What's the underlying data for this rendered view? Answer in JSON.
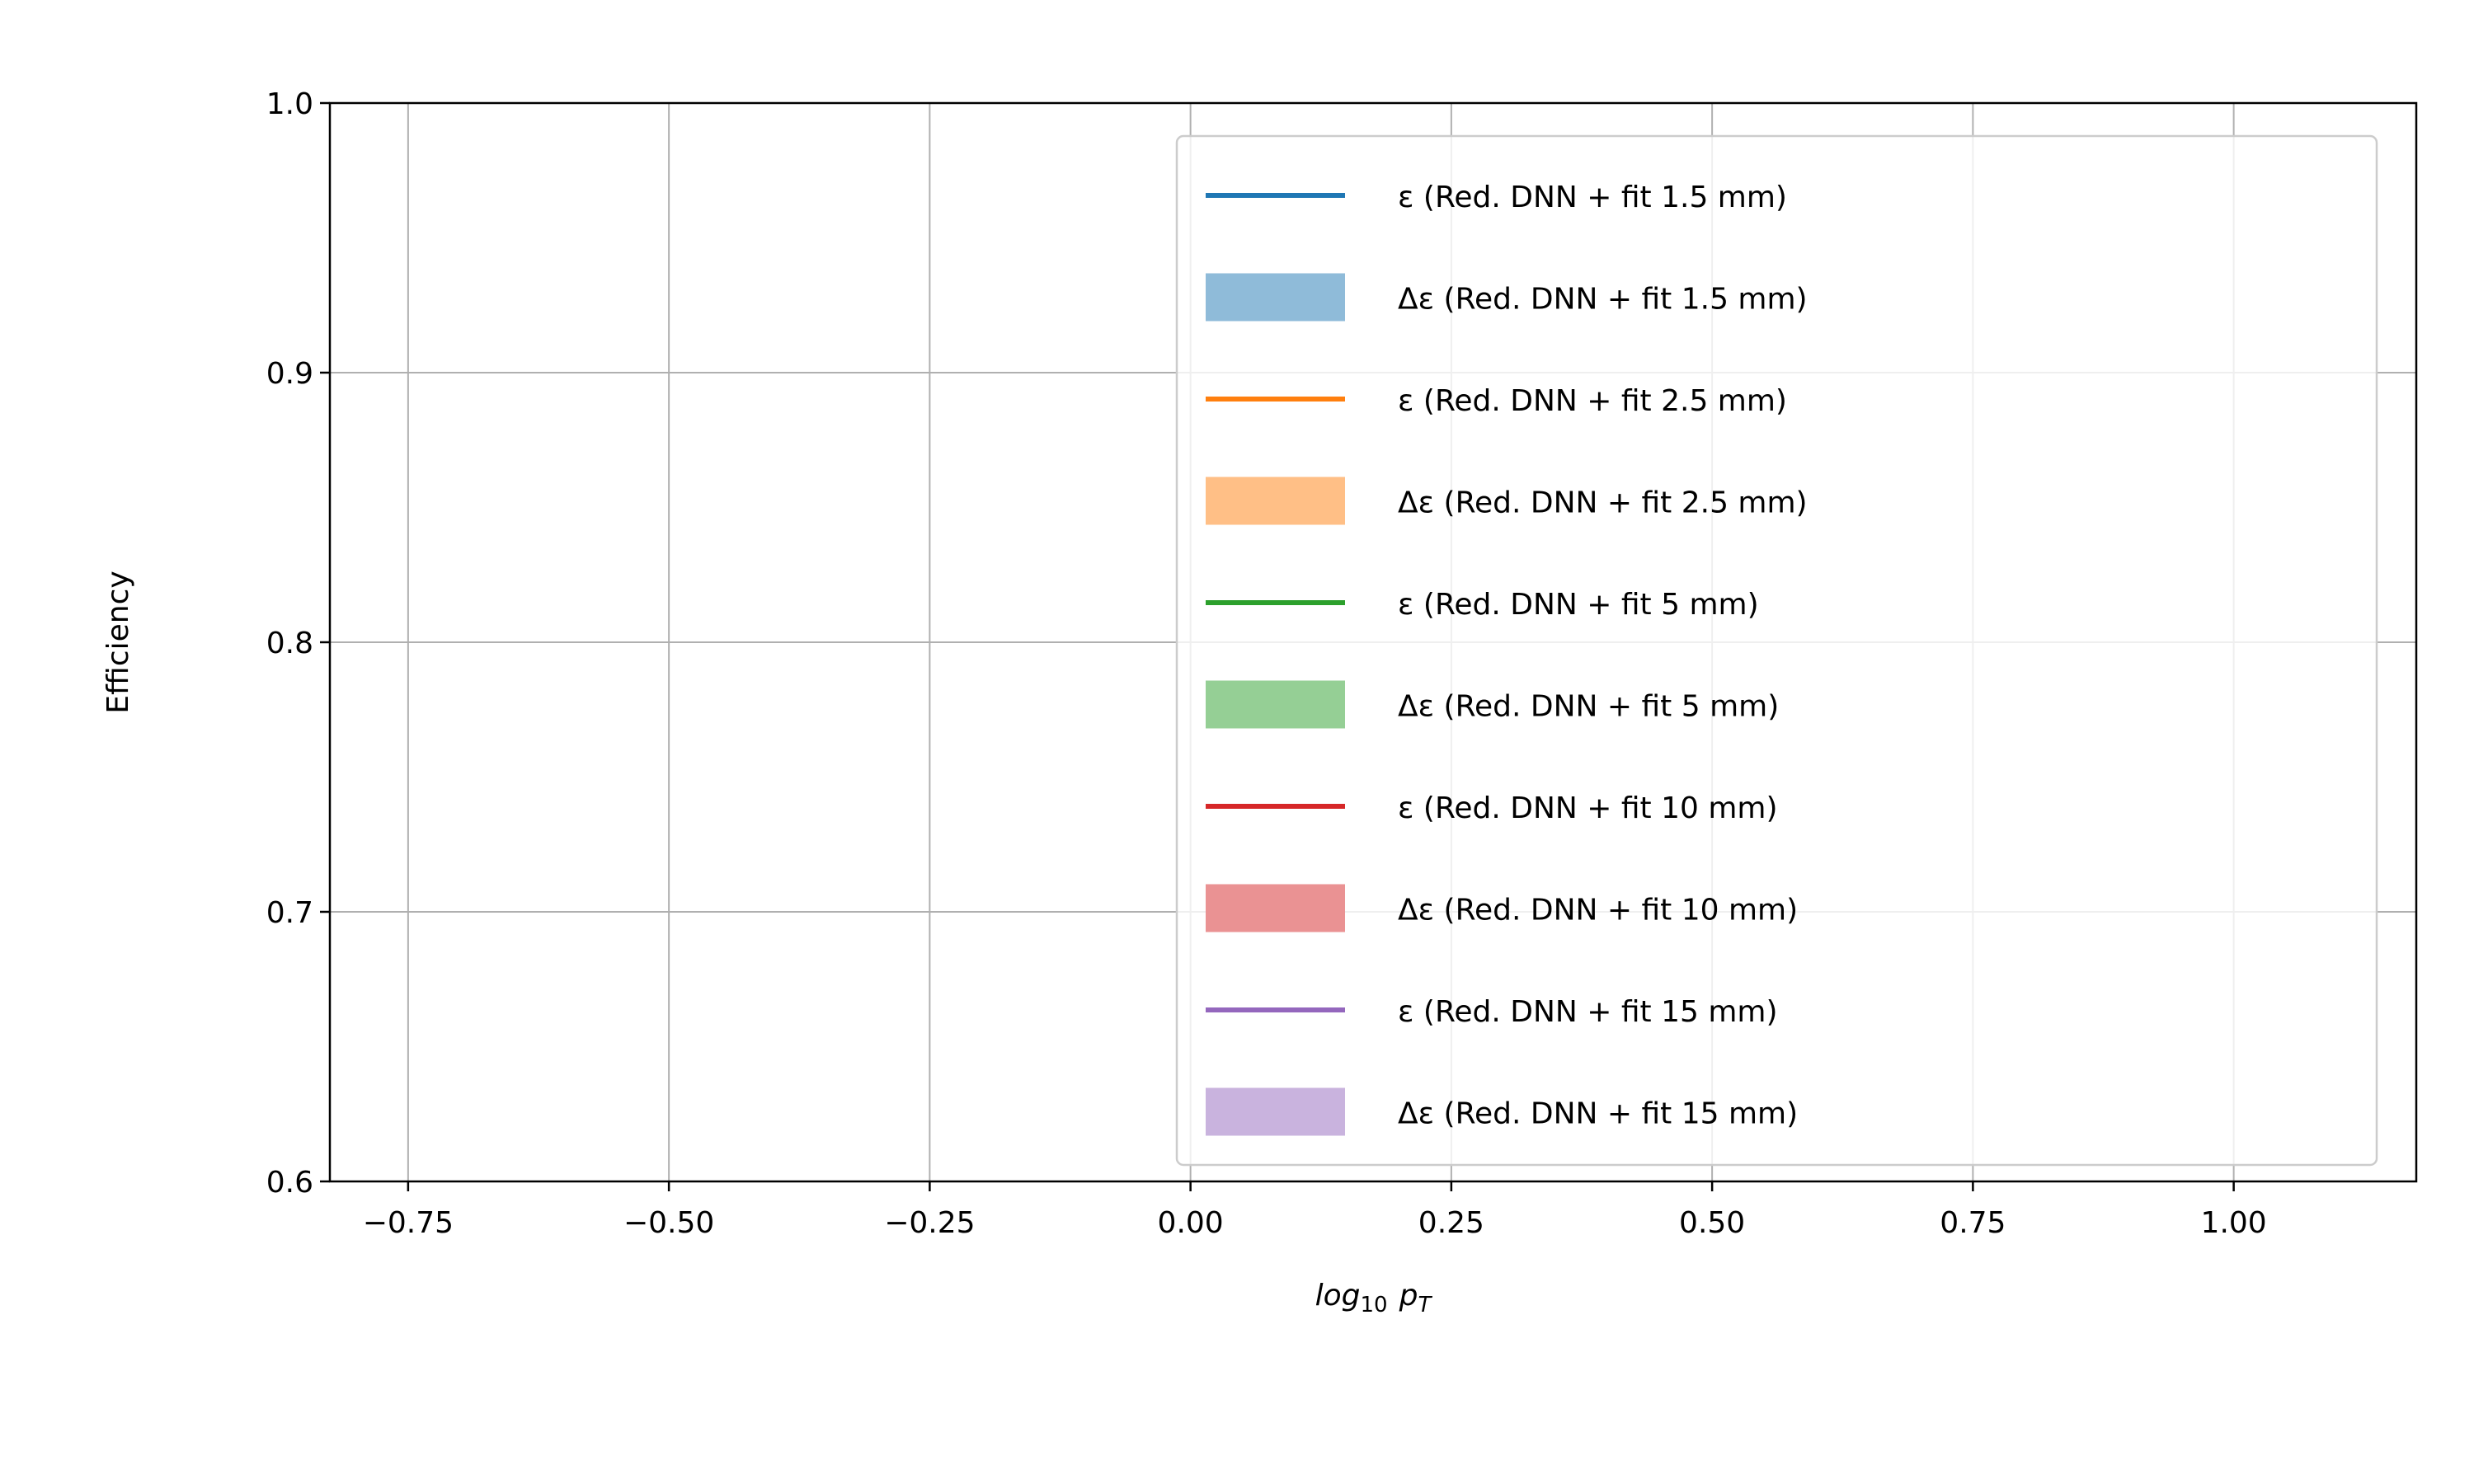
{
  "chart_data": {
    "type": "line",
    "title": "",
    "xlabel": "log10 pT",
    "xlabel_parts": {
      "base": "log",
      "sub": "10",
      "var": "p",
      "var_sub": "T"
    },
    "ylabel": "Efficiency",
    "xlim": [
      -0.825,
      1.175
    ],
    "ylim": [
      0.6,
      1.0
    ],
    "xticks": [
      -0.75,
      -0.5,
      -0.25,
      0.0,
      0.25,
      0.5,
      0.75,
      1.0
    ],
    "xtick_labels": [
      "−0.75",
      "−0.50",
      "−0.25",
      "0.00",
      "0.25",
      "0.50",
      "0.75",
      "1.00"
    ],
    "yticks": [
      0.6,
      0.7,
      0.8,
      0.9,
      1.0
    ],
    "ytick_labels": [
      "0.6",
      "0.7",
      "0.8",
      "0.9",
      "1.0"
    ],
    "grid": true,
    "legend_position": "upper-right",
    "series": [
      {
        "name": "ε (Red. DNN + fit 1.5 mm)",
        "kind": "line",
        "color": "#1f77b4",
        "values": []
      },
      {
        "name": "Δε (Red. DNN + fit 1.5 mm)",
        "kind": "band",
        "color": "#8fbbd9",
        "values": []
      },
      {
        "name": "ε (Red. DNN + fit 2.5 mm)",
        "kind": "line",
        "color": "#ff7f0e",
        "values": []
      },
      {
        "name": "Δε (Red. DNN + fit 2.5 mm)",
        "kind": "band",
        "color": "#ffbf86",
        "values": []
      },
      {
        "name": "ε (Red. DNN + fit 5 mm)",
        "kind": "line",
        "color": "#2ca02c",
        "values": []
      },
      {
        "name": "Δε (Red. DNN + fit 5 mm)",
        "kind": "band",
        "color": "#95cf95",
        "values": []
      },
      {
        "name": "ε (Red. DNN + fit 10 mm)",
        "kind": "line",
        "color": "#d62728",
        "values": []
      },
      {
        "name": "Δε (Red. DNN + fit 10 mm)",
        "kind": "band",
        "color": "#ea9293",
        "values": []
      },
      {
        "name": "ε (Red. DNN + fit 15 mm)",
        "kind": "line",
        "color": "#9467bd",
        "values": []
      },
      {
        "name": "Δε (Red. DNN + fit 15 mm)",
        "kind": "band",
        "color": "#c9b3de",
        "values": []
      }
    ]
  }
}
